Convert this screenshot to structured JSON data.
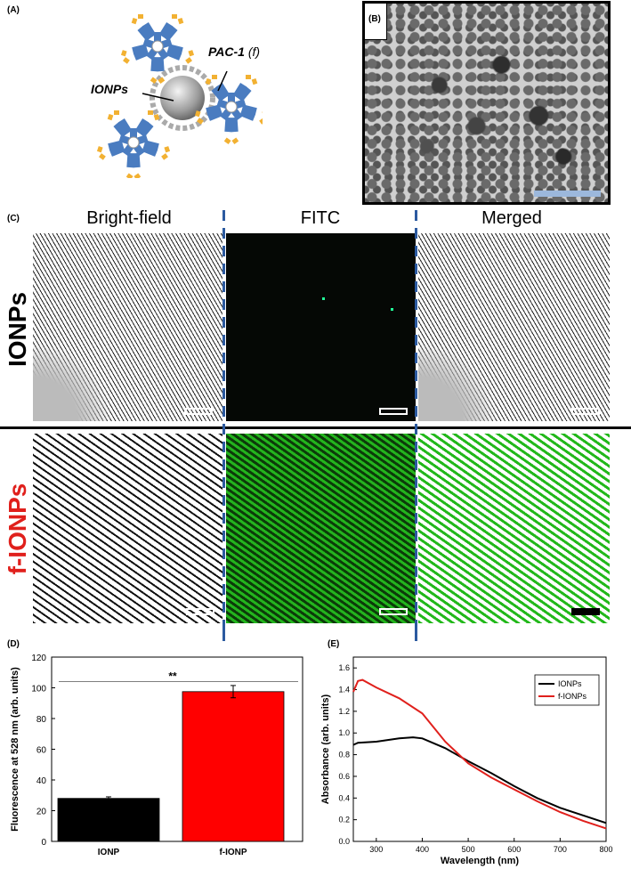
{
  "panel_a": {
    "label": "(A)",
    "label_ionps": "IONPs",
    "label_pac1": "PAC-1",
    "label_pac1_suffix": "(f)"
  },
  "panel_b": {
    "label": "(B)"
  },
  "panel_c": {
    "label": "(C)",
    "columns": [
      "Bright-field",
      "FITC",
      "Merged"
    ],
    "rows": [
      "IONPs",
      "f-IONPs"
    ],
    "row_colors": [
      "#000000",
      "#e0201c"
    ]
  },
  "panel_d": {
    "label": "(D)",
    "chart_data": {
      "type": "bar",
      "categories": [
        "IONP",
        "f-IONP"
      ],
      "values": [
        28,
        97.5
      ],
      "errors": [
        1,
        4
      ],
      "colors": [
        "#000000",
        "#ff0000"
      ],
      "ylabel": "Fluorescence at 528 nm (arb. units)",
      "ylim": [
        0,
        120
      ],
      "yticks": [
        0,
        20,
        40,
        60,
        80,
        100,
        120
      ],
      "significance": {
        "label": "**",
        "y": 104
      }
    }
  },
  "panel_e": {
    "label": "(E)",
    "chart_data": {
      "type": "line",
      "xlabel": "Wavelength (nm)",
      "ylabel": "Absorbance (arb. units)",
      "xlim": [
        250,
        800
      ],
      "ylim": [
        0.0,
        1.7
      ],
      "xticks": [
        300,
        400,
        500,
        600,
        700,
        800
      ],
      "yticks": [
        0.0,
        0.2,
        0.4,
        0.6,
        0.8,
        1.0,
        1.2,
        1.4,
        1.6
      ],
      "legend_position": "top-right",
      "series": [
        {
          "name": "IONPs",
          "color": "#000000",
          "x": [
            250,
            260,
            300,
            350,
            380,
            400,
            450,
            500,
            550,
            600,
            650,
            700,
            750,
            800
          ],
          "y": [
            0.89,
            0.91,
            0.92,
            0.95,
            0.96,
            0.95,
            0.86,
            0.74,
            0.63,
            0.51,
            0.4,
            0.31,
            0.24,
            0.17
          ]
        },
        {
          "name": "f-IONPs",
          "color": "#e0201c",
          "x": [
            250,
            260,
            270,
            300,
            350,
            400,
            450,
            500,
            550,
            600,
            650,
            700,
            750,
            800
          ],
          "y": [
            1.38,
            1.48,
            1.49,
            1.42,
            1.32,
            1.18,
            0.92,
            0.72,
            0.59,
            0.48,
            0.37,
            0.27,
            0.19,
            0.12
          ]
        }
      ]
    }
  }
}
